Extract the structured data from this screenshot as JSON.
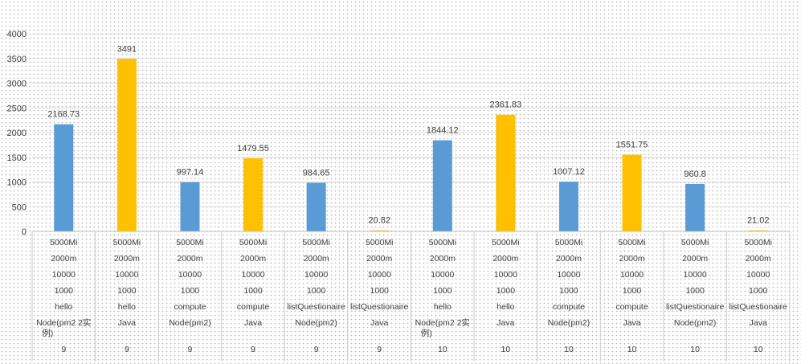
{
  "chart_data": {
    "type": "bar",
    "title": "",
    "xlabel": "",
    "ylabel": "",
    "ylim": [
      0,
      4000
    ],
    "yticks": [
      0,
      500,
      1000,
      1500,
      2000,
      2500,
      3000,
      3500,
      4000
    ],
    "grid": true,
    "legend": "none",
    "colors": {
      "node": "#5b9bd5",
      "java": "#ffc000",
      "grid": "#d9d9d9",
      "text": "#404040"
    },
    "categories": [
      {
        "levels": [
          "5000Mi",
          "2000m",
          "10000",
          "1000",
          "hello",
          "Node(pm2 2实例)",
          "9"
        ],
        "value": 2168.73,
        "label": "2168.73",
        "series": "node"
      },
      {
        "levels": [
          "5000Mi",
          "2000m",
          "10000",
          "1000",
          "hello",
          "Java",
          "9"
        ],
        "value": 3491,
        "label": "3491",
        "series": "java"
      },
      {
        "levels": [
          "5000Mi",
          "2000m",
          "10000",
          "1000",
          "compute",
          "Node(pm2)",
          "9"
        ],
        "value": 997.14,
        "label": "997.14",
        "series": "node"
      },
      {
        "levels": [
          "5000Mi",
          "2000m",
          "10000",
          "1000",
          "compute",
          "Java",
          "9"
        ],
        "value": 1479.55,
        "label": "1479.55",
        "series": "java"
      },
      {
        "levels": [
          "5000Mi",
          "2000m",
          "10000",
          "1000",
          "listQuestionaire",
          "Node(pm2)",
          "9"
        ],
        "value": 984.65,
        "label": "984.65",
        "series": "node"
      },
      {
        "levels": [
          "5000Mi",
          "2000m",
          "10000",
          "1000",
          "listQuestionaire",
          "Java",
          "9"
        ],
        "value": 20.82,
        "label": "20.82",
        "series": "java"
      },
      {
        "levels": [
          "5000Mi",
          "2000m",
          "10000",
          "1000",
          "hello",
          "Node(pm2 2实例)",
          "10"
        ],
        "value": 1844.12,
        "label": "1844.12",
        "series": "node"
      },
      {
        "levels": [
          "5000Mi",
          "2000m",
          "10000",
          "1000",
          "hello",
          "Java",
          "10"
        ],
        "value": 2361.83,
        "label": "2361.83",
        "series": "java"
      },
      {
        "levels": [
          "5000Mi",
          "2000m",
          "10000",
          "1000",
          "compute",
          "Node(pm2)",
          "10"
        ],
        "value": 1007.12,
        "label": "1007.12",
        "series": "node"
      },
      {
        "levels": [
          "5000Mi",
          "2000m",
          "10000",
          "1000",
          "compute",
          "Java",
          "10"
        ],
        "value": 1551.75,
        "label": "1551.75",
        "series": "java"
      },
      {
        "levels": [
          "5000Mi",
          "2000m",
          "10000",
          "1000",
          "listQuestionaire",
          "Node(pm2)",
          "10"
        ],
        "value": 960.8,
        "label": "960.8",
        "series": "node"
      },
      {
        "levels": [
          "5000Mi",
          "2000m",
          "10000",
          "1000",
          "listQuestionaire",
          "Java",
          "10"
        ],
        "value": 21.02,
        "label": "21.02",
        "series": "java"
      }
    ]
  }
}
